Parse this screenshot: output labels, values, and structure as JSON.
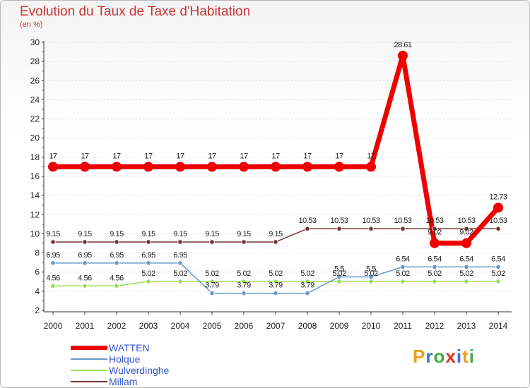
{
  "header": {
    "title": "Evolution du Taux de Taxe d'Habitation",
    "unit": "(en %)"
  },
  "logo": {
    "letters": [
      "P",
      "r",
      "o",
      "x",
      "i",
      "t",
      "i"
    ],
    "colors": [
      "#e8a020",
      "#3377cc",
      "#44aa44",
      "#dd3322",
      "#3377cc",
      "#e8a020",
      "#44aa44"
    ]
  },
  "chart_data": {
    "type": "line",
    "title": "Evolution du Taux de Taxe d'Habitation",
    "ylabel": "(en %)",
    "xlabel": "",
    "ylim": [
      2,
      30
    ],
    "yticks": [
      "2",
      "4",
      "6",
      "8",
      "10",
      "12",
      "14",
      "16",
      "18",
      "20",
      "22",
      "24",
      "26",
      "28",
      "30"
    ],
    "categories": [
      "2000",
      "2001",
      "2002",
      "2003",
      "2004",
      "2005",
      "2006",
      "2007",
      "2008",
      "2009",
      "2010",
      "2011",
      "2012",
      "2013",
      "2014"
    ],
    "series": [
      {
        "name": "WATTEN",
        "color": "#ee0000",
        "values": [
          17,
          17,
          17,
          17,
          17,
          17,
          17,
          17,
          17,
          17,
          17,
          28.61,
          9.02,
          9.02,
          12.73
        ],
        "labels": [
          "17",
          "17",
          "17",
          "17",
          "17",
          "17",
          "17",
          "17",
          "17",
          "17",
          "17",
          "28.61",
          "9.02",
          "9.02",
          "12.73"
        ]
      },
      {
        "name": "Holque",
        "color": "#6699cc",
        "values": [
          6.95,
          6.95,
          6.95,
          6.95,
          6.95,
          3.79,
          3.79,
          3.79,
          3.79,
          5.5,
          5.5,
          6.54,
          6.54,
          6.54,
          6.54
        ],
        "labels": [
          "6.95",
          "6.95",
          "6.95",
          "6.95",
          "6.95",
          "3.79",
          "3.79",
          "3.79",
          "3.79",
          "5.5",
          "5.5",
          "6.54",
          "6.54",
          "6.54",
          "6.54"
        ]
      },
      {
        "name": "Wulverdinghe",
        "color": "#99dd55",
        "values": [
          4.56,
          4.56,
          4.56,
          5.02,
          5.02,
          5.02,
          5.02,
          5.02,
          5.02,
          5.02,
          5.02,
          5.02,
          5.02,
          5.02,
          5.02
        ],
        "labels": [
          "4.56",
          "4.56",
          "4.56",
          "5.02",
          "5.02",
          "5.02",
          "5.02",
          "5.02",
          "5.02",
          "5.02",
          "5.02",
          "5.02",
          "5.02",
          "5.02",
          "5.02"
        ]
      },
      {
        "name": "Millam",
        "color": "#773333",
        "values": [
          9.15,
          9.15,
          9.15,
          9.15,
          9.15,
          9.15,
          9.15,
          9.15,
          10.53,
          10.53,
          10.53,
          10.53,
          10.53,
          10.53,
          10.53
        ],
        "labels": [
          "9.15",
          "9.15",
          "9.15",
          "9.15",
          "9.15",
          "9.15",
          "9.15",
          "9.15",
          "10.53",
          "10.53",
          "10.53",
          "10.53",
          "10.53",
          "10.53",
          "10.53"
        ]
      }
    ]
  }
}
